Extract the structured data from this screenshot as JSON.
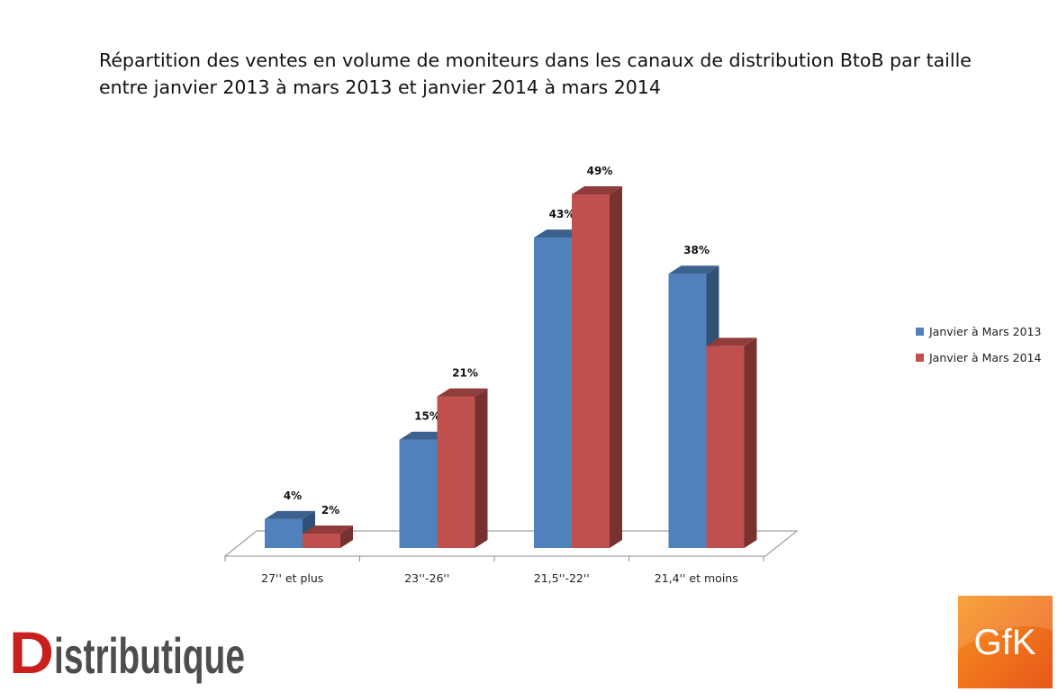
{
  "title_line1": "Répartition des ventes en volume de moniteurs dans les canaux de distribution BtoB par taille",
  "title_line2": "entre janvier 2013 à mars 2013 et janvier 2014 à mars 2014",
  "chart_data": {
    "type": "bar",
    "title": "Répartition des ventes en volume de moniteurs dans les canaux de distribution BtoB par taille entre janvier 2013 à mars 2013 et janvier 2014 à mars 2014",
    "categories": [
      "27'' et plus",
      "23''-26''",
      "21,5''-22''",
      "21,4'' et moins"
    ],
    "series": [
      {
        "name": "Janvier à Mars 2013",
        "values": [
          4,
          15,
          43,
          38
        ],
        "labels": [
          "4%",
          "15%",
          "43%",
          "38%"
        ],
        "color": "#4f81bd"
      },
      {
        "name": "Janvier à Mars 2014",
        "values": [
          2,
          21,
          49,
          28
        ],
        "labels": [
          "2%",
          "21%",
          "49%",
          ""
        ],
        "color": "#c0504d"
      }
    ],
    "ylim": [
      0,
      49
    ],
    "grid": false,
    "legend_position": "right",
    "style": "3d-clustered-column"
  },
  "legend": {
    "items": [
      {
        "label": "Janvier à Mars 2013",
        "color": "#4f81bd"
      },
      {
        "label": "Janvier à Mars 2014",
        "color": "#c0504d"
      }
    ]
  },
  "logos": {
    "left": {
      "name": "Distributique logo",
      "text": "Distributique"
    },
    "right": {
      "name": "GfK logo",
      "text": "GfK"
    }
  }
}
